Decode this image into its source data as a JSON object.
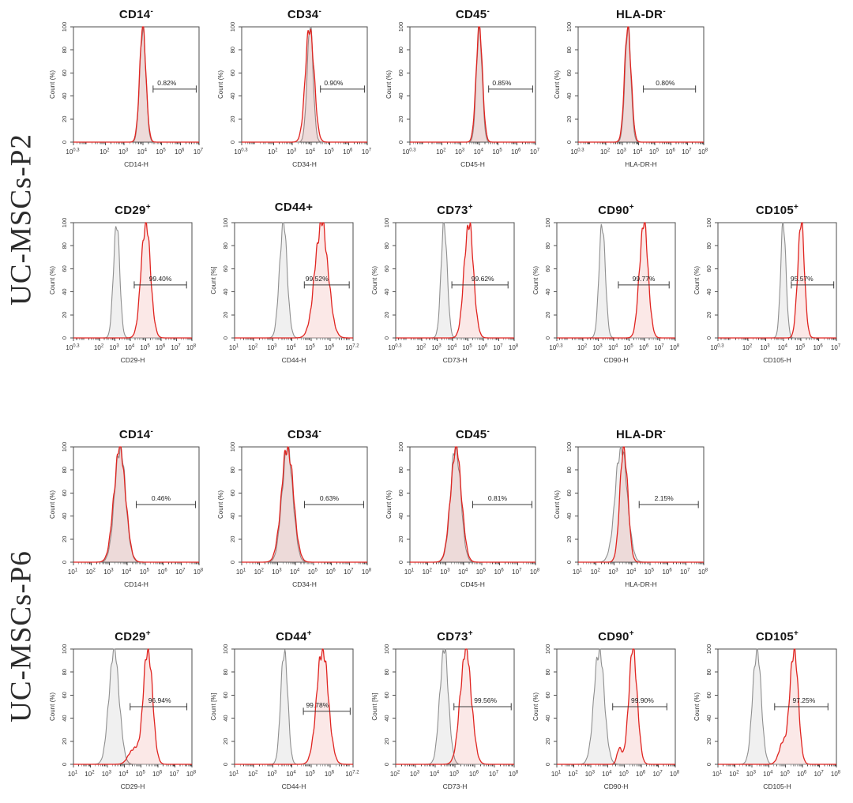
{
  "figure": {
    "groups": [
      {
        "label": "UC-MSCs-P2"
      },
      {
        "label": "UC-MSCs-P6"
      }
    ]
  },
  "colors": {
    "sample_line": "#e02420",
    "sample_fill": "rgba(224,62,54,0.12)",
    "control_line": "#8f8f8f",
    "control_fill": "rgba(140,140,140,0.13)",
    "axis": "#4d4d4d",
    "gate": "#3c3c3c",
    "gate_label": "#222222",
    "title": "#151515",
    "tick_text": "#333333"
  },
  "chart_data": [
    {
      "type": "histogram-overlay-row",
      "group": "UC-MSCs-P2",
      "row_name": "P2-negative-markers",
      "plots": [
        {
          "title": "CD14",
          "sup": "-",
          "gate_percent": "0.82%",
          "xlabel": "CD14-H",
          "ylabel": "Count (%)",
          "yticks": [
            0,
            20,
            40,
            60,
            80,
            100
          ],
          "x_exponents": [
            "0.3",
            "2",
            "3",
            "4",
            "5",
            "6",
            "7"
          ],
          "x_range": [
            0.3,
            7
          ],
          "control": {
            "peak_log": 4.0,
            "sigma_log": 0.16
          },
          "sample": {
            "peak_log": 4.0,
            "sigma_log": 0.17
          },
          "gate": {
            "from_log": 4.55,
            "to_log": 6.85,
            "y": 46,
            "label_frac": 0.32
          }
        },
        {
          "title": "CD34",
          "sup": "-",
          "gate_percent": "0.90%",
          "xlabel": "CD34-H",
          "ylabel": "Count (%)",
          "yticks": [
            0,
            20,
            40,
            60,
            80,
            100
          ],
          "x_exponents": [
            "0.3",
            "2",
            "3",
            "4",
            "5",
            "6",
            "7"
          ],
          "x_range": [
            0.3,
            7
          ],
          "control": {
            "peak_log": 3.95,
            "sigma_log": 0.16
          },
          "sample": {
            "peak_log": 3.93,
            "sigma_log": 0.23
          },
          "gate": {
            "from_log": 4.5,
            "to_log": 6.85,
            "y": 46,
            "label_frac": 0.3
          }
        },
        {
          "title": "CD45",
          "sup": "-",
          "gate_percent": "0.85%",
          "xlabel": "CD45-H",
          "ylabel": "Count (%)",
          "yticks": [
            0,
            20,
            40,
            60,
            80,
            100
          ],
          "x_exponents": [
            "0.3",
            "2",
            "3",
            "4",
            "5",
            "6",
            "7"
          ],
          "x_range": [
            0.3,
            7
          ],
          "control": {
            "peak_log": 4.0,
            "sigma_log": 0.15
          },
          "sample": {
            "peak_log": 4.0,
            "sigma_log": 0.17
          },
          "gate": {
            "from_log": 4.5,
            "to_log": 6.85,
            "y": 46,
            "label_frac": 0.3
          }
        },
        {
          "title": "HLA-DR",
          "sup": "-",
          "gate_percent": "0.80%",
          "xlabel": "HLA-DR-H",
          "ylabel": "Count (%)",
          "yticks": [
            0,
            20,
            40,
            60,
            80,
            100
          ],
          "x_exponents": [
            "0.3",
            "2",
            "3",
            "4",
            "5",
            "6",
            "7",
            "8"
          ],
          "x_range": [
            0.3,
            8
          ],
          "control": {
            "peak_log": 3.35,
            "sigma_log": 0.18
          },
          "sample": {
            "peak_log": 3.35,
            "sigma_log": 0.2
          },
          "gate": {
            "from_log": 4.3,
            "to_log": 7.5,
            "y": 46,
            "label_frac": 0.42
          }
        }
      ]
    },
    {
      "type": "histogram-overlay-row",
      "group": "UC-MSCs-P2",
      "row_name": "P2-positive-markers",
      "plots": [
        {
          "title": "CD29",
          "sup": "+",
          "gate_percent": "99.40%",
          "xlabel": "CD29-H",
          "ylabel": "Count (%)",
          "yticks": [
            0,
            20,
            40,
            60,
            80,
            100
          ],
          "x_exponents": [
            "0.3",
            "2",
            "3",
            "4",
            "5",
            "6",
            "7",
            "8"
          ],
          "x_range": [
            0.3,
            8
          ],
          "control": {
            "peak_log": 3.1,
            "sigma_log": 0.2
          },
          "sample": {
            "peak_log": 5.0,
            "sigma_log": 0.3
          },
          "gate": {
            "from_log": 4.25,
            "to_log": 7.65,
            "y": 46,
            "label_frac": 0.5
          }
        },
        {
          "title": "CD44",
          "sup": "+",
          "sup_inline": true,
          "gate_percent": "99.52%",
          "xlabel": "CD44-H",
          "ylabel": "Count [%]",
          "yticks": [
            0,
            20,
            40,
            60,
            80,
            100
          ],
          "x_exponents": [
            "1",
            "2",
            "3",
            "4",
            "5",
            "6",
            "7.2"
          ],
          "x_range": [
            1,
            7.2
          ],
          "control": {
            "peak_log": 3.55,
            "sigma_log": 0.2
          },
          "sample": {
            "peak_log": 5.55,
            "sigma_log": 0.34
          },
          "gate": {
            "from_log": 4.65,
            "to_log": 7.0,
            "y": 46,
            "label_frac": 0.28
          }
        },
        {
          "title": "CD73",
          "sup": "+",
          "gate_percent": "99.62%",
          "xlabel": "CD73-H",
          "ylabel": "Count (%)",
          "yticks": [
            0,
            20,
            40,
            60,
            80,
            100
          ],
          "x_exponents": [
            "0.3",
            "2",
            "3",
            "4",
            "5",
            "6",
            "7",
            "8"
          ],
          "x_range": [
            0.3,
            8
          ],
          "control": {
            "peak_log": 3.45,
            "sigma_log": 0.2
          },
          "sample": {
            "peak_log": 5.05,
            "sigma_log": 0.3
          },
          "gate": {
            "from_log": 3.95,
            "to_log": 7.6,
            "y": 46,
            "label_frac": 0.55
          }
        },
        {
          "title": "CD90",
          "sup": "+",
          "gate_percent": "99.77%",
          "xlabel": "CD90-H",
          "ylabel": "Count (%)",
          "yticks": [
            0,
            20,
            40,
            60,
            80,
            100
          ],
          "x_exponents": [
            "0.3",
            "2",
            "3",
            "4",
            "5",
            "6",
            "7",
            "8"
          ],
          "x_range": [
            0.3,
            8
          ],
          "control": {
            "peak_log": 3.25,
            "sigma_log": 0.2
          },
          "sample": {
            "peak_log": 5.95,
            "sigma_log": 0.28
          },
          "gate": {
            "from_log": 4.3,
            "to_log": 7.6,
            "y": 46,
            "label_frac": 0.5
          }
        },
        {
          "title": "CD105",
          "sup": "+",
          "gate_percent": "95.57%",
          "xlabel": "CD105-H",
          "ylabel": "Count (%)",
          "yticks": [
            0,
            20,
            40,
            60,
            80,
            100
          ],
          "x_exponents": [
            "0.3",
            "2",
            "3",
            "4",
            "5",
            "6",
            "7"
          ],
          "x_range": [
            0.3,
            7
          ],
          "control": {
            "peak_log": 4.0,
            "sigma_log": 0.15
          },
          "sample": {
            "peak_log": 5.0,
            "sigma_log": 0.19
          },
          "gate": {
            "from_log": 4.45,
            "to_log": 6.85,
            "y": 46,
            "label_frac": 0.25
          }
        }
      ]
    },
    {
      "type": "histogram-overlay-row",
      "group": "UC-MSCs-P6",
      "row_name": "P6-negative-markers",
      "plots": [
        {
          "title": "CD14",
          "sup": "-",
          "gate_percent": "0.46%",
          "xlabel": "CD14-H",
          "ylabel": "Count (%)",
          "yticks": [
            0,
            20,
            40,
            60,
            80,
            100
          ],
          "x_exponents": [
            "1",
            "2",
            "3",
            "4",
            "5",
            "6",
            "7",
            "8"
          ],
          "x_range": [
            1,
            8
          ],
          "control": {
            "peak_log": 3.6,
            "sigma_log": 0.3
          },
          "sample": {
            "peak_log": 3.58,
            "sigma_log": 0.32
          },
          "gate": {
            "from_log": 4.5,
            "to_log": 7.8,
            "y": 50,
            "label_frac": 0.42
          }
        },
        {
          "title": "CD34",
          "sup": "-",
          "gate_percent": "0.63%",
          "xlabel": "CD34-H",
          "ylabel": "Count (%)",
          "yticks": [
            0,
            20,
            40,
            60,
            80,
            100
          ],
          "x_exponents": [
            "1",
            "2",
            "3",
            "4",
            "5",
            "6",
            "7",
            "8"
          ],
          "x_range": [
            1,
            8
          ],
          "control": {
            "peak_log": 3.55,
            "sigma_log": 0.3
          },
          "sample": {
            "peak_log": 3.55,
            "sigma_log": 0.33
          },
          "gate": {
            "from_log": 4.5,
            "to_log": 7.8,
            "y": 50,
            "label_frac": 0.42
          }
        },
        {
          "title": "CD45",
          "sup": "-",
          "gate_percent": "0.81%",
          "xlabel": "CD45-H",
          "ylabel": "Count (%)",
          "yticks": [
            0,
            20,
            40,
            60,
            80,
            100
          ],
          "x_exponents": [
            "1",
            "2",
            "3",
            "4",
            "5",
            "6",
            "7",
            "8"
          ],
          "x_range": [
            1,
            8
          ],
          "control": {
            "peak_log": 3.55,
            "sigma_log": 0.28
          },
          "sample": {
            "peak_log": 3.57,
            "sigma_log": 0.3
          },
          "gate": {
            "from_log": 4.5,
            "to_log": 7.8,
            "y": 50,
            "label_frac": 0.42
          }
        },
        {
          "title": "HLA-DR",
          "sup": "-",
          "gate_percent": "2.15%",
          "xlabel": "HLA-DR-H",
          "ylabel": "Count (%)",
          "yticks": [
            0,
            20,
            40,
            60,
            80,
            100
          ],
          "x_exponents": [
            "1",
            "2",
            "3",
            "4",
            "5",
            "6",
            "7",
            "8"
          ],
          "x_range": [
            1,
            8
          ],
          "control": {
            "peak_log": 3.4,
            "sigma_log": 0.33
          },
          "sample": {
            "peak_log": 3.55,
            "sigma_log": 0.22
          },
          "gate": {
            "from_log": 4.4,
            "to_log": 7.7,
            "y": 50,
            "label_frac": 0.42
          }
        }
      ]
    },
    {
      "type": "histogram-overlay-row",
      "group": "UC-MSCs-P6",
      "row_name": "P6-positive-markers",
      "plots": [
        {
          "title": "CD29",
          "sup": "+",
          "gate_percent": "96.94%",
          "xlabel": "CD29-H",
          "ylabel": "Count (%)",
          "yticks": [
            0,
            20,
            40,
            60,
            80,
            100
          ],
          "x_exponents": [
            "1",
            "2",
            "3",
            "4",
            "5",
            "6",
            "7",
            "8"
          ],
          "x_range": [
            1,
            8
          ],
          "control": {
            "peak_log": 3.4,
            "sigma_log": 0.3
          },
          "sample": {
            "peak_log": 5.4,
            "sigma_log": 0.27,
            "bumps": [
              {
                "peak_log": 4.55,
                "sigma_log": 0.3,
                "amp": 13
              }
            ]
          },
          "gate": {
            "from_log": 4.35,
            "to_log": 7.7,
            "y": 50,
            "label_frac": 0.52
          }
        },
        {
          "title": "CD44",
          "sup": "+",
          "gate_percent": "99.78%",
          "xlabel": "CD44-H",
          "ylabel": "Count [%]",
          "yticks": [
            0,
            20,
            40,
            60,
            80,
            100
          ],
          "x_exponents": [
            "1",
            "2",
            "3",
            "4",
            "5",
            "6",
            "7.2"
          ],
          "x_range": [
            1,
            7.2
          ],
          "control": {
            "peak_log": 3.6,
            "sigma_log": 0.18
          },
          "sample": {
            "peak_log": 5.6,
            "sigma_log": 0.3
          },
          "gate": {
            "from_log": 4.6,
            "to_log": 7.05,
            "y": 46,
            "label_frac": 0.3
          }
        },
        {
          "title": "CD73",
          "sup": "+",
          "gate_percent": "99.56%",
          "xlabel": "CD73-H",
          "ylabel": "Count [%]",
          "yticks": [
            0,
            20,
            40,
            60,
            80,
            100
          ],
          "x_exponents": [
            "2",
            "3",
            "4",
            "5",
            "6",
            "7",
            "8"
          ],
          "x_range": [
            2,
            8
          ],
          "control": {
            "peak_log": 4.45,
            "sigma_log": 0.22
          },
          "sample": {
            "peak_log": 5.55,
            "sigma_log": 0.28
          },
          "gate": {
            "from_log": 4.95,
            "to_log": 7.85,
            "y": 50,
            "label_frac": 0.55
          }
        },
        {
          "title": "CD90",
          "sup": "+",
          "gate_percent": "99.90%",
          "xlabel": "CD90-H",
          "ylabel": "Count (%)",
          "yticks": [
            0,
            20,
            40,
            60,
            80,
            100
          ],
          "x_exponents": [
            "1",
            "2",
            "3",
            "4",
            "5",
            "6",
            "7",
            "8"
          ],
          "x_range": [
            1,
            8
          ],
          "control": {
            "peak_log": 3.5,
            "sigma_log": 0.3
          },
          "sample": {
            "peak_log": 5.5,
            "sigma_log": 0.25,
            "bumps": [
              {
                "peak_log": 4.7,
                "sigma_log": 0.14,
                "amp": 14
              }
            ]
          },
          "gate": {
            "from_log": 4.3,
            "to_log": 7.5,
            "y": 50,
            "label_frac": 0.55
          }
        },
        {
          "title": "CD105",
          "sup": "+",
          "gate_percent": "97.25%",
          "xlabel": "CD105-H",
          "ylabel": "Count (%)",
          "yticks": [
            0,
            20,
            40,
            60,
            80,
            100
          ],
          "x_exponents": [
            "1",
            "2",
            "3",
            "4",
            "5",
            "6",
            "7",
            "8"
          ],
          "x_range": [
            1,
            8
          ],
          "control": {
            "peak_log": 3.3,
            "sigma_log": 0.25
          },
          "sample": {
            "peak_log": 5.5,
            "sigma_log": 0.24,
            "bumps": [
              {
                "peak_log": 4.85,
                "sigma_log": 0.25,
                "amp": 18
              }
            ]
          },
          "gate": {
            "from_log": 4.35,
            "to_log": 7.5,
            "y": 50,
            "label_frac": 0.55
          }
        }
      ]
    }
  ]
}
